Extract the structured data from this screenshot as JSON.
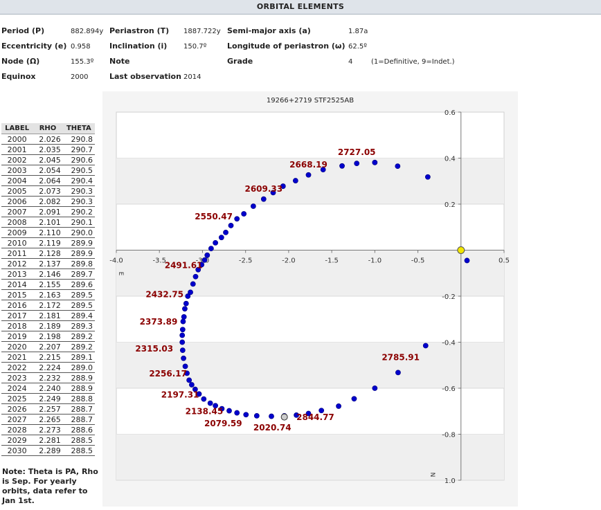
{
  "header": {
    "title": "ORBITAL ELEMENTS"
  },
  "elements": {
    "period_label": "Period (P)",
    "period_value": "882.894y",
    "periastron_label": "Periastron (T)",
    "periastron_value": "1887.722y",
    "semimajor_label": "Semi-major axis (a)",
    "semimajor_value": "1.87a",
    "ecc_label": "Eccentricity (e)",
    "ecc_value": "0.958",
    "incl_label": "Inclination (i)",
    "incl_value": "150.7º",
    "lop_label": "Longitude of periastron (ω)",
    "lop_value": "62.5º",
    "node_label": "Node (Ω)",
    "node_value": "155.3º",
    "note_label": "Note",
    "grade_label": "Grade",
    "grade_value": "4",
    "grade_note": "(1=Definitive, 9=Indet.)",
    "equinox_label": "Equinox",
    "equinox_value": "2000",
    "lastobs_label": "Last observation",
    "lastobs_value": "2014"
  },
  "table": {
    "headers": [
      "LABEL",
      "RHO",
      "THETA"
    ],
    "rows": [
      [
        "2000",
        "2.026",
        "290.8"
      ],
      [
        "2001",
        "2.035",
        "290.7"
      ],
      [
        "2002",
        "2.045",
        "290.6"
      ],
      [
        "2003",
        "2.054",
        "290.5"
      ],
      [
        "2004",
        "2.064",
        "290.4"
      ],
      [
        "2005",
        "2.073",
        "290.3"
      ],
      [
        "2006",
        "2.082",
        "290.3"
      ],
      [
        "2007",
        "2.091",
        "290.2"
      ],
      [
        "2008",
        "2.101",
        "290.1"
      ],
      [
        "2009",
        "2.110",
        "290.0"
      ],
      [
        "2010",
        "2.119",
        "289.9"
      ],
      [
        "2011",
        "2.128",
        "289.9"
      ],
      [
        "2012",
        "2.137",
        "289.8"
      ],
      [
        "2013",
        "2.146",
        "289.7"
      ],
      [
        "2014",
        "2.155",
        "289.6"
      ],
      [
        "2015",
        "2.163",
        "289.5"
      ],
      [
        "2016",
        "2.172",
        "289.5"
      ],
      [
        "2017",
        "2.181",
        "289.4"
      ],
      [
        "2018",
        "2.189",
        "289.3"
      ],
      [
        "2019",
        "2.198",
        "289.2"
      ],
      [
        "2020",
        "2.207",
        "289.2"
      ],
      [
        "2021",
        "2.215",
        "289.1"
      ],
      [
        "2022",
        "2.224",
        "289.0"
      ],
      [
        "2023",
        "2.232",
        "288.9"
      ],
      [
        "2024",
        "2.240",
        "288.9"
      ],
      [
        "2025",
        "2.249",
        "288.8"
      ],
      [
        "2026",
        "2.257",
        "288.7"
      ],
      [
        "2027",
        "2.265",
        "288.7"
      ],
      [
        "2028",
        "2.273",
        "288.6"
      ],
      [
        "2029",
        "2.281",
        "288.5"
      ],
      [
        "2030",
        "2.289",
        "288.5"
      ]
    ]
  },
  "note": "Note: Theta is PA, Rho is Sep. For yearly orbits, data refer to Jan 1st.",
  "chart_data": {
    "type": "scatter",
    "title": "19266+2719  STF2525AB",
    "xlim": [
      -4.0,
      0.5
    ],
    "ylim": [
      0.6,
      -1.0
    ],
    "x_ticks": [
      "-4.0",
      "-3.5",
      "-3.0",
      "-2.5",
      "-2.0",
      "-1.5",
      "-1.0",
      "-0.5",
      "0.5"
    ],
    "y_ticks": [
      "0.6",
      "0.4",
      "0.2",
      "-0.2",
      "-0.4",
      "-0.6",
      "-0.8",
      "1.0"
    ],
    "x_axis_letter": "E",
    "y_axis_letter": "N",
    "orbit_color": "#0000cc",
    "label_color": "#8b0000",
    "grid_band_color": "#efefef",
    "orbit_points": [
      [
        -0.385,
        0.318
      ],
      [
        -0.735,
        0.365
      ],
      [
        -1.0,
        0.381
      ],
      [
        -1.21,
        0.377
      ],
      [
        -1.38,
        0.366
      ],
      [
        -1.6,
        0.35
      ],
      [
        -1.77,
        0.327
      ],
      [
        -1.92,
        0.302
      ],
      [
        -2.065,
        0.278
      ],
      [
        -2.18,
        0.25
      ],
      [
        -2.29,
        0.222
      ],
      [
        -2.41,
        0.191
      ],
      [
        -2.52,
        0.158
      ],
      [
        -2.6,
        0.136
      ],
      [
        -2.67,
        0.107
      ],
      [
        -2.73,
        0.077
      ],
      [
        -2.78,
        0.055
      ],
      [
        -2.85,
        0.032
      ],
      [
        -2.9,
        0.007
      ],
      [
        -2.945,
        -0.022
      ],
      [
        -2.975,
        -0.043
      ],
      [
        -3.01,
        -0.063
      ],
      [
        -3.05,
        -0.085
      ],
      [
        -3.08,
        -0.115
      ],
      [
        -3.11,
        -0.147
      ],
      [
        -3.14,
        -0.183
      ],
      [
        -3.17,
        -0.2
      ],
      [
        -3.19,
        -0.232
      ],
      [
        -3.205,
        -0.255
      ],
      [
        -3.215,
        -0.29
      ],
      [
        -3.225,
        -0.31
      ],
      [
        -3.23,
        -0.345
      ],
      [
        -3.235,
        -0.37
      ],
      [
        -3.235,
        -0.4
      ],
      [
        -3.23,
        -0.435
      ],
      [
        -3.22,
        -0.47
      ],
      [
        -3.2,
        -0.505
      ],
      [
        -3.18,
        -0.535
      ],
      [
        -3.155,
        -0.565
      ],
      [
        -3.125,
        -0.585
      ],
      [
        -3.085,
        -0.605
      ],
      [
        -3.04,
        -0.625
      ],
      [
        -2.985,
        -0.647
      ],
      [
        -2.91,
        -0.665
      ],
      [
        -2.85,
        -0.676
      ],
      [
        -2.775,
        -0.689
      ],
      [
        -2.69,
        -0.698
      ],
      [
        -2.6,
        -0.707
      ],
      [
        -2.495,
        -0.715
      ],
      [
        -2.37,
        -0.72
      ],
      [
        -2.2,
        -0.722
      ],
      [
        -2.05,
        -0.72
      ],
      [
        -1.91,
        -0.717
      ],
      [
        -1.77,
        -0.71
      ],
      [
        -1.62,
        -0.697
      ],
      [
        -1.42,
        -0.678
      ],
      [
        -1.24,
        -0.646
      ],
      [
        -1.0,
        -0.6
      ],
      [
        -0.73,
        -0.532
      ],
      [
        -0.41,
        -0.415
      ],
      [
        0.07,
        -0.045
      ]
    ],
    "labels": [
      {
        "text": "2727.05",
        "x": -1.21,
        "y": 0.425
      },
      {
        "text": "2668.19",
        "x": -1.77,
        "y": 0.372
      },
      {
        "text": "2609.33",
        "x": -2.29,
        "y": 0.266
      },
      {
        "text": "2550.47",
        "x": -2.87,
        "y": 0.146
      },
      {
        "text": "2491.61",
        "x": -3.22,
        "y": -0.066
      },
      {
        "text": "2432.75",
        "x": -3.44,
        "y": -0.192
      },
      {
        "text": "2373.89",
        "x": -3.51,
        "y": -0.311
      },
      {
        "text": "2315.03",
        "x": -3.56,
        "y": -0.428
      },
      {
        "text": "2256.17",
        "x": -3.4,
        "y": -0.537
      },
      {
        "text": "2197.31",
        "x": -3.26,
        "y": -0.628
      },
      {
        "text": "2138.45",
        "x": -2.98,
        "y": -0.7
      },
      {
        "text": "2079.59",
        "x": -2.76,
        "y": -0.754
      },
      {
        "text": "2020.74",
        "x": -2.19,
        "y": -0.772
      },
      {
        "text": "2844.77",
        "x": -1.69,
        "y": -0.726
      },
      {
        "text": "2785.91",
        "x": -0.7,
        "y": -0.466
      }
    ],
    "primary_star": {
      "x": 0.0,
      "y": 0.0
    },
    "current_position": {
      "x": -2.05,
      "y": -0.725
    }
  }
}
